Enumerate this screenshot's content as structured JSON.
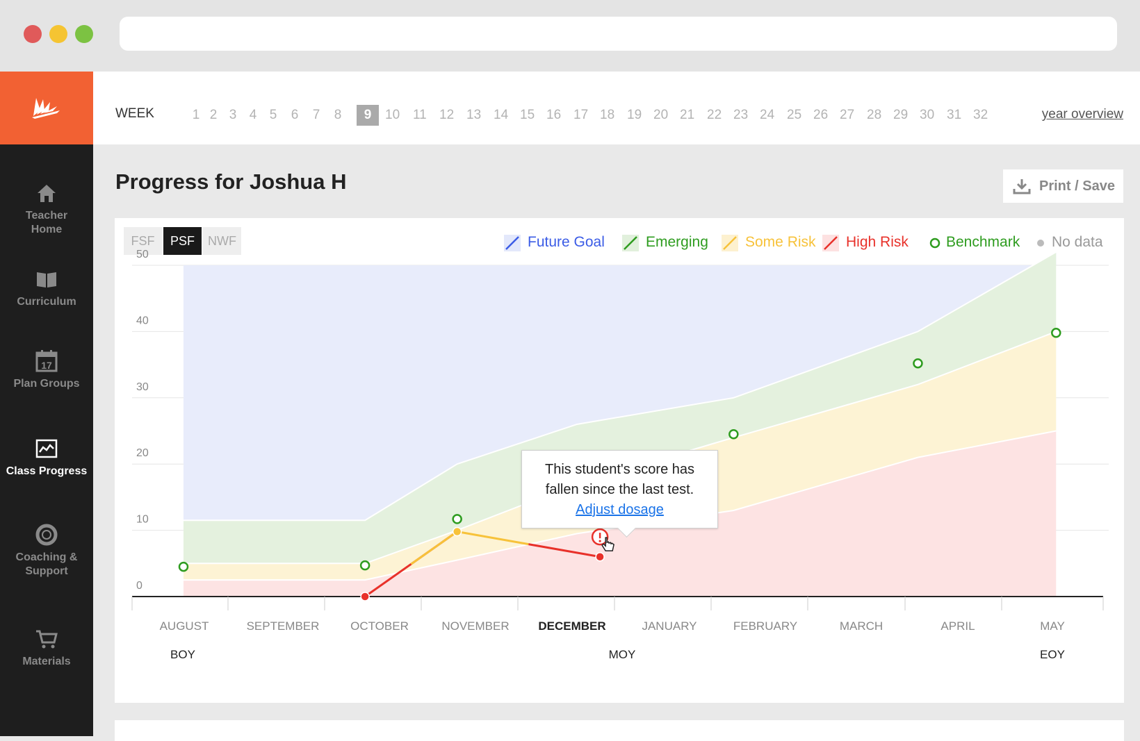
{
  "sidebar": {
    "items": [
      {
        "label": "Teacher Home",
        "icon": "home-icon"
      },
      {
        "label": "Curriculum",
        "icon": "book-icon"
      },
      {
        "label": "Plan Groups",
        "icon": "calendar-icon",
        "icon_text": "17"
      },
      {
        "label": "Class Progress",
        "icon": "chart-icon",
        "active": true
      },
      {
        "label": "Coaching & Support",
        "icon": "lifebuoy-icon"
      },
      {
        "label": "Materials",
        "icon": "cart-icon"
      }
    ]
  },
  "weekbar": {
    "label": "WEEK",
    "weeks": [
      "1",
      "2",
      "3",
      "4",
      "5",
      "6",
      "7",
      "8",
      "9",
      "10",
      "11",
      "12",
      "13",
      "14",
      "15",
      "16",
      "17",
      "18",
      "19",
      "20",
      "21",
      "22",
      "23",
      "24",
      "25",
      "26",
      "27",
      "28",
      "29",
      "30",
      "31",
      "32"
    ],
    "selected": "9",
    "year_overview": "year overview"
  },
  "page": {
    "title": "Progress for Joshua H",
    "print_label": "Print / Save"
  },
  "tabs": [
    {
      "label": "FSF",
      "selected": false
    },
    {
      "label": "PSF",
      "selected": true
    },
    {
      "label": "NWF",
      "selected": false
    }
  ],
  "legend": [
    {
      "label": "Future Goal",
      "color": "#3b5ce6"
    },
    {
      "label": "Emerging",
      "color": "#2e9c1f"
    },
    {
      "label": "Some Risk",
      "color": "#f7c23a"
    },
    {
      "label": "High Risk",
      "color": "#e8312a"
    },
    {
      "label": "Benchmark",
      "color": "#2e9c1f"
    },
    {
      "label": "No data",
      "color": "#aaaaaa"
    }
  ],
  "tooltip": {
    "line1": "This student's score has",
    "line2": "fallen since the last test.",
    "link": "Adjust dosage"
  },
  "chart_data": {
    "type": "area",
    "ylim": [
      0,
      50
    ],
    "yticks": [
      0,
      10,
      20,
      30,
      40,
      50
    ],
    "months": [
      "AUGUST",
      "SEPTEMBER",
      "OCTOBER",
      "NOVEMBER",
      "DECEMBER",
      "JANUARY",
      "FEBRUARY",
      "MARCH",
      "APRIL",
      "MAY"
    ],
    "highlighted_month": "DECEMBER",
    "periods": [
      {
        "label": "BOY",
        "month": 0
      },
      {
        "label": "MOY",
        "month": 5
      },
      {
        "label": "EOY",
        "month": 9
      }
    ],
    "band_x": [
      0.03,
      2.0,
      3.0,
      4.3,
      6.0,
      8.0,
      9.5
    ],
    "bands": {
      "high_risk_top": [
        2.5,
        2.5,
        5.5,
        9.5,
        13,
        21,
        25
      ],
      "some_risk_top": [
        5,
        5,
        10,
        17,
        24,
        32,
        40
      ],
      "emerging_top": [
        11.5,
        11.5,
        20,
        26,
        30,
        40,
        52
      ],
      "future_goal_top": [
        50,
        50,
        50,
        50,
        50,
        50,
        50
      ]
    },
    "benchmarks": [
      {
        "x": 0.03,
        "y": 4.5
      },
      {
        "x": 2.0,
        "y": 4.7
      },
      {
        "x": 3.0,
        "y": 11.7
      },
      {
        "x": 6.0,
        "y": 24.5
      },
      {
        "x": 8.0,
        "y": 35.2
      },
      {
        "x": 9.5,
        "y": 39.8
      }
    ],
    "scores": [
      {
        "x": 2.0,
        "y": 0,
        "status": "high-risk"
      },
      {
        "x": 3.0,
        "y": 9.8,
        "status": "some-risk"
      },
      {
        "x": 4.55,
        "y": 6,
        "status": "high-risk"
      }
    ],
    "alert_point": {
      "x": 4.55,
      "y": 9
    }
  }
}
